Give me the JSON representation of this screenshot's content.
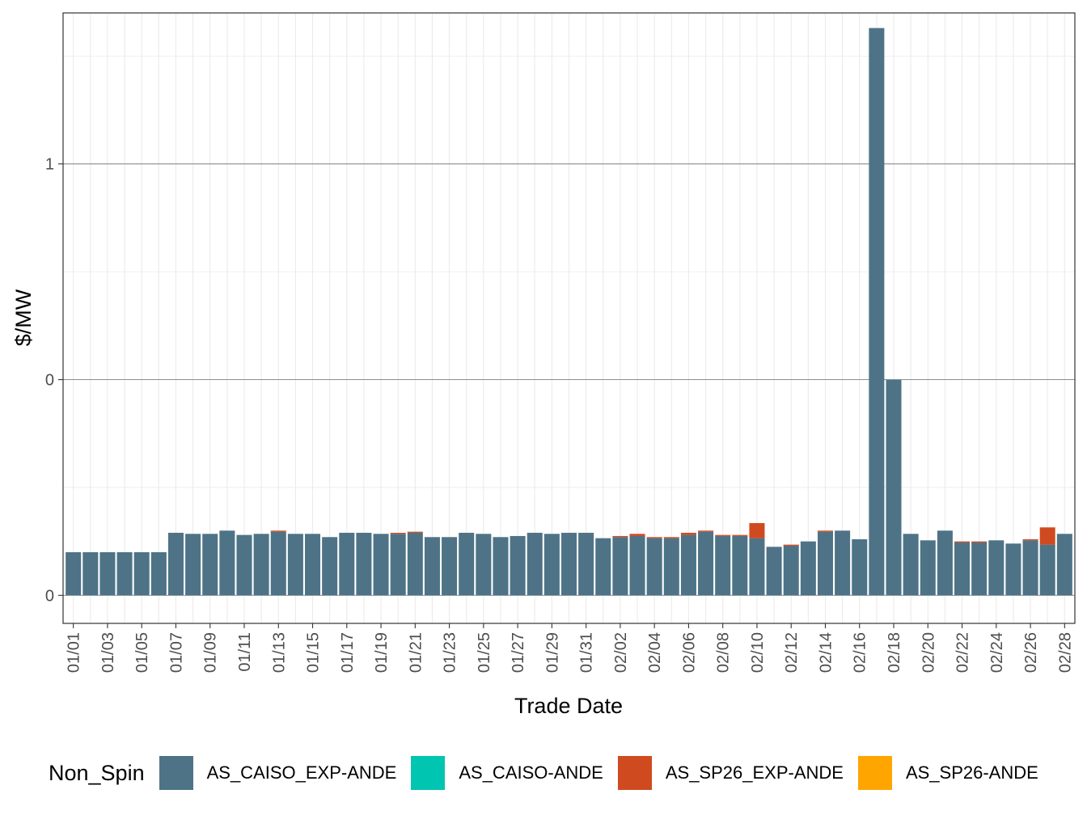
{
  "chart_data": {
    "type": "bar",
    "stacked": true,
    "xlabel": "Trade Date",
    "ylabel": "$/MW",
    "legend_title": "Non_Spin",
    "legend_position": "bottom",
    "grid": true,
    "y_ticks": [
      {
        "value": 0,
        "label": "0"
      },
      {
        "value": 1,
        "label": "0"
      },
      {
        "value": 2,
        "label": "1"
      }
    ],
    "ylim": [
      -0.13,
      2.7
    ],
    "categories": [
      "01/01",
      "01/02",
      "01/03",
      "01/04",
      "01/05",
      "01/06",
      "01/07",
      "01/08",
      "01/09",
      "01/10",
      "01/11",
      "01/12",
      "01/13",
      "01/14",
      "01/15",
      "01/16",
      "01/17",
      "01/18",
      "01/19",
      "01/20",
      "01/21",
      "01/22",
      "01/23",
      "01/24",
      "01/25",
      "01/26",
      "01/27",
      "01/28",
      "01/29",
      "01/30",
      "01/31",
      "02/01",
      "02/02",
      "02/03",
      "02/04",
      "02/05",
      "02/06",
      "02/07",
      "02/08",
      "02/09",
      "02/10",
      "02/11",
      "02/12",
      "02/13",
      "02/14",
      "02/15",
      "02/16",
      "02/17",
      "02/18",
      "02/19",
      "02/20",
      "02/21",
      "02/22",
      "02/23",
      "02/24",
      "02/25",
      "02/26",
      "02/27",
      "02/28"
    ],
    "tick_labels": [
      "01/01",
      "01/03",
      "01/05",
      "01/07",
      "01/09",
      "01/11",
      "01/13",
      "01/15",
      "01/17",
      "01/19",
      "01/21",
      "01/23",
      "01/25",
      "01/27",
      "01/29",
      "01/31",
      "02/02",
      "02/04",
      "02/06",
      "02/08",
      "02/10",
      "02/12",
      "02/14",
      "02/16",
      "02/18",
      "02/20",
      "02/22",
      "02/24",
      "02/26",
      "02/28"
    ],
    "series": [
      {
        "name": "AS_CAISO_EXP-ANDE",
        "color": "#4E7387",
        "values": [
          0.2,
          0.2,
          0.2,
          0.2,
          0.2,
          0.2,
          0.29,
          0.285,
          0.285,
          0.3,
          0.28,
          0.285,
          0.295,
          0.285,
          0.285,
          0.27,
          0.29,
          0.29,
          0.285,
          0.285,
          0.29,
          0.27,
          0.27,
          0.29,
          0.285,
          0.27,
          0.275,
          0.29,
          0.285,
          0.29,
          0.29,
          0.265,
          0.27,
          0.275,
          0.265,
          0.265,
          0.28,
          0.295,
          0.275,
          0.275,
          0.265,
          0.225,
          0.23,
          0.25,
          0.295,
          0.3,
          0.26,
          2.63,
          1.0,
          0.285,
          0.255,
          0.3,
          0.245,
          0.245,
          0.255,
          0.24,
          0.255,
          0.235,
          0.285
        ]
      },
      {
        "name": "AS_CAISO-ANDE",
        "color": "#00C5B0",
        "values": [
          0,
          0,
          0,
          0,
          0,
          0,
          0,
          0,
          0,
          0,
          0,
          0,
          0,
          0,
          0,
          0,
          0,
          0,
          0,
          0,
          0,
          0,
          0,
          0,
          0,
          0,
          0,
          0,
          0,
          0,
          0,
          0,
          0,
          0,
          0,
          0,
          0,
          0,
          0,
          0,
          0,
          0,
          0,
          0,
          0,
          0,
          0,
          0,
          0,
          0,
          0,
          0,
          0,
          0,
          0,
          0,
          0,
          0,
          0
        ]
      },
      {
        "name": "AS_SP26_EXP-ANDE",
        "color": "#D04A1F",
        "values": [
          0,
          0,
          0,
          0,
          0,
          0,
          0,
          0,
          0,
          0,
          0,
          0,
          0.005,
          0,
          0,
          0,
          0,
          0,
          0,
          0.005,
          0.005,
          0,
          0,
          0,
          0,
          0,
          0,
          0,
          0,
          0,
          0,
          0,
          0.005,
          0.01,
          0.005,
          0.005,
          0.01,
          0.005,
          0.005,
          0.005,
          0.07,
          0,
          0.005,
          0,
          0.005,
          0,
          0,
          0,
          0,
          0,
          0,
          0,
          0.005,
          0.005,
          0,
          0,
          0.005,
          0.08,
          0
        ]
      },
      {
        "name": "AS_SP26-ANDE",
        "color": "#FFA500",
        "values": [
          0,
          0,
          0,
          0,
          0,
          0,
          0,
          0,
          0,
          0,
          0,
          0,
          0,
          0,
          0,
          0,
          0,
          0,
          0,
          0,
          0,
          0,
          0,
          0,
          0,
          0,
          0,
          0,
          0,
          0,
          0,
          0,
          0,
          0,
          0,
          0,
          0,
          0,
          0,
          0,
          0,
          0,
          0,
          0,
          0,
          0,
          0,
          0,
          0,
          0,
          0,
          0,
          0,
          0,
          0,
          0,
          0,
          0,
          0
        ]
      }
    ]
  }
}
